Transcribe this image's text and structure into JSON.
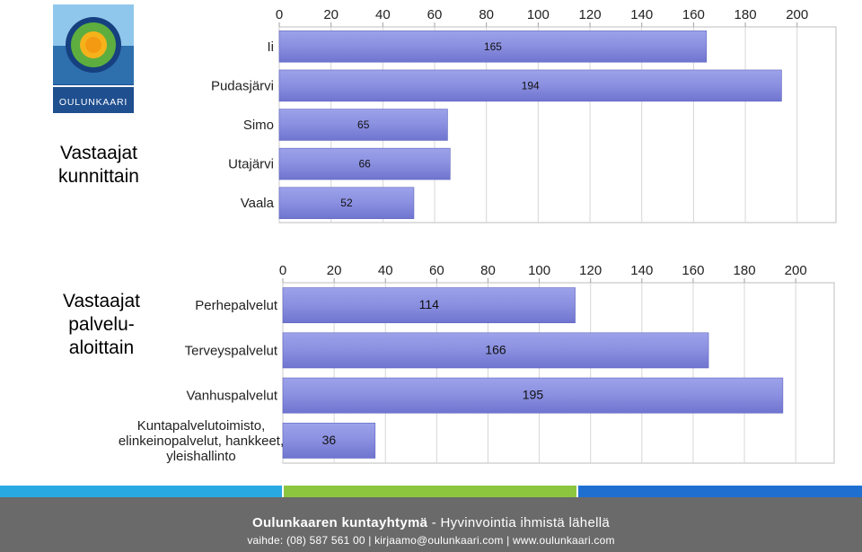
{
  "logo": {
    "text": "OULUNKAARI"
  },
  "titles": {
    "chart1": "Vastaajat\nkunnittain",
    "chart2": "Vastaajat\npalvelu-\naloittain"
  },
  "chart_data": [
    {
      "type": "bar",
      "orientation": "horizontal",
      "categories": [
        "Ii",
        "Pudasjärvi",
        "Simo",
        "Utajärvi",
        "Vaala"
      ],
      "values": [
        165,
        194,
        65,
        66,
        52
      ],
      "xlim": [
        0,
        215
      ],
      "xticks": [
        0,
        20,
        40,
        60,
        80,
        100,
        120,
        140,
        160,
        180,
        200
      ],
      "axis_position": "top",
      "grid": true,
      "bar_color": "#8a8fe0"
    },
    {
      "type": "bar",
      "orientation": "horizontal",
      "categories": [
        "Perhepalvelut",
        "Terveyspalvelut",
        "Vanhuspalvelut",
        "Kuntapalvelutoimisto,\nelinkeinopalvelut, hankkeet,\nyleishallinto"
      ],
      "values": [
        114,
        166,
        195,
        36
      ],
      "xlim": [
        0,
        215
      ],
      "xticks": [
        0,
        20,
        40,
        60,
        80,
        100,
        120,
        140,
        160,
        180,
        200
      ],
      "axis_position": "top",
      "grid": true,
      "bar_color": "#8a8fe0"
    }
  ],
  "footer": {
    "org": "Oulunkaaren kuntayhtymä",
    "tagline": "- Hyvinvointia ihmistä lähellä",
    "contact": "vaihde: (08) 587 561 00  |  kirjaamo@oulunkaari.com  |  www.oulunkaari.com"
  },
  "colors": {
    "stripe_blue": "#29a9e1",
    "stripe_green": "#8cc63f",
    "stripe_darkblue": "#1f6fd1",
    "footer_bg": "#6a6a6a"
  }
}
